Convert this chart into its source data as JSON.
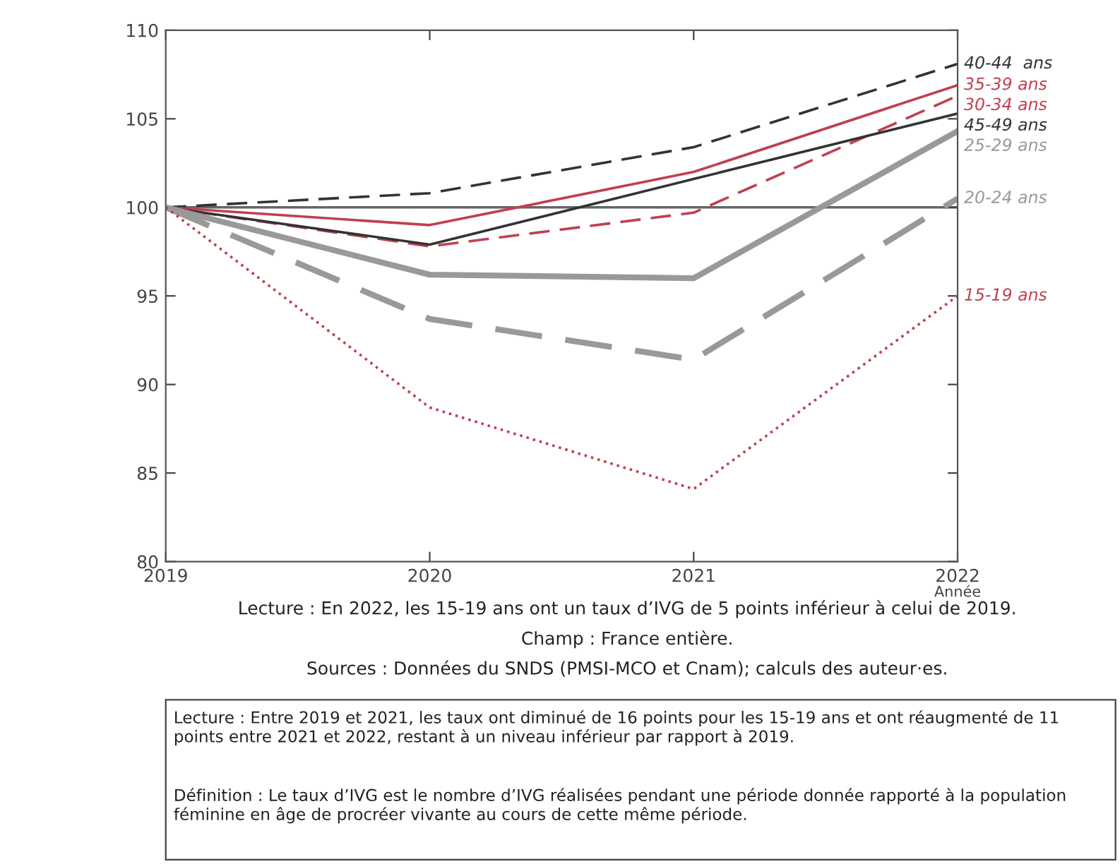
{
  "chart_data": {
    "type": "line",
    "x": [
      2019,
      2020,
      2021,
      2022
    ],
    "xlim": [
      2019,
      2022
    ],
    "xticks": [
      2019,
      2020,
      2021,
      2022
    ],
    "ylim": [
      80,
      110
    ],
    "yticks": [
      80,
      85,
      90,
      95,
      100,
      105,
      110
    ],
    "xlabel": "Année",
    "series": [
      {
        "name": "40-44  ans",
        "color": "#333333",
        "line_style": "dashed",
        "values": [
          100,
          100.8,
          103.4,
          108.1
        ]
      },
      {
        "name": "35-39 ans",
        "color": "#c0404f",
        "line_style": "solid",
        "values": [
          100,
          99.0,
          102.0,
          106.9
        ]
      },
      {
        "name": "30-34 ans",
        "color": "#c0404f",
        "line_style": "dashed",
        "values": [
          100,
          97.8,
          99.7,
          106.3
        ]
      },
      {
        "name": "45-49 ans",
        "color": "#333333",
        "line_style": "solid",
        "values": [
          100,
          97.9,
          101.6,
          105.3
        ]
      },
      {
        "name": "25-29 ans",
        "color": "#999999",
        "line_style": "solid",
        "values": [
          100,
          96.2,
          96.0,
          104.3
        ]
      },
      {
        "name": "20-24 ans",
        "color": "#999999",
        "line_style": "dashed",
        "values": [
          100,
          93.7,
          91.4,
          100.5
        ]
      },
      {
        "name": "15-19 ans",
        "color": "#c0404f",
        "line_style": "dotted",
        "values": [
          100,
          88.7,
          84.1,
          95.0
        ]
      }
    ],
    "ref_lines": [
      {
        "axis": "y",
        "value": 100,
        "color": "#666666"
      }
    ],
    "grid": false,
    "legend": false,
    "marker": "none",
    "annotations": [
      "Lecture : En 2022, les 15-19 ans ont un taux d’IVG de 5 points inférieur à celui de 2019.",
      "Champ : France entière.",
      "Sources : Données du SNDS (PMSI-MCO et Cnam); calculs des auteur·es.",
      "Lecture : Entre 2019 et 2021, les taux ont diminué de 16 points pour les 15-19 ans et ont réaugmenté de 11 points entre 2021 et 2022, restant à un niveau inférieur par rapport à 2019.",
      "Définition : Le taux d’IVG est le nombre d’IVG réalisées pendant une période donnée rapporté à la population féminine en âge de procréer vivante au cours de cette même période."
    ]
  }
}
